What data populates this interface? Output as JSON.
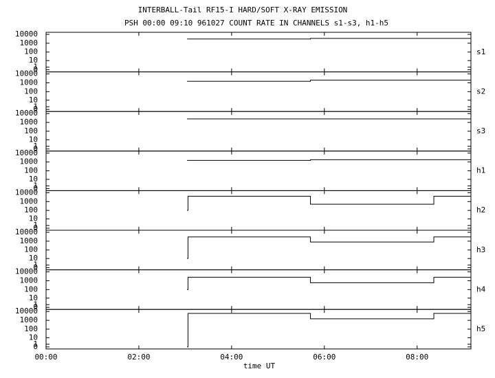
{
  "chart_data": {
    "type": "step",
    "title": "INTERBALL-Tail RF15-I HARD/SOFT X-RAY EMISSION",
    "subtitle": "PSH 00:00 09:10 961027  COUNT RATE IN CHANNELS s1-s3, h1-h5",
    "x_label": "time UT",
    "xlim": [
      0,
      9.16
    ],
    "xticks": [
      {
        "value": 0,
        "label": "00:00"
      },
      {
        "value": 2,
        "label": "02:00"
      },
      {
        "value": 4,
        "label": "04:00"
      },
      {
        "value": 6,
        "label": "06:00"
      },
      {
        "value": 8,
        "label": "08:00"
      }
    ],
    "ylim": [
      0,
      10000
    ],
    "yticks": [
      0,
      1,
      10,
      100,
      1000,
      10000
    ],
    "log": true,
    "color": "#000000",
    "x": [
      3.04,
      3.06,
      5.7,
      8.36,
      9.16
    ],
    "series": [
      {
        "name": "s1",
        "values": [
          3000,
          3000,
          3500,
          3500,
          3500
        ]
      },
      {
        "name": "s2",
        "values": [
          1500,
          1500,
          2000,
          2000,
          2000
        ]
      },
      {
        "name": "s3",
        "values": [
          2500,
          2500,
          2500,
          2500,
          2500
        ]
      },
      {
        "name": "h1",
        "values": [
          1500,
          1500,
          1800,
          1800,
          1800
        ]
      },
      {
        "name": "h2",
        "values": [
          100,
          4000,
          500,
          4000,
          4000
        ]
      },
      {
        "name": "h3",
        "values": [
          10,
          3000,
          800,
          3000,
          3000
        ]
      },
      {
        "name": "h4",
        "values": [
          100,
          2500,
          600,
          2500,
          2500
        ]
      },
      {
        "name": "h5",
        "values": [
          0,
          6000,
          1500,
          6000,
          6000
        ]
      }
    ]
  }
}
